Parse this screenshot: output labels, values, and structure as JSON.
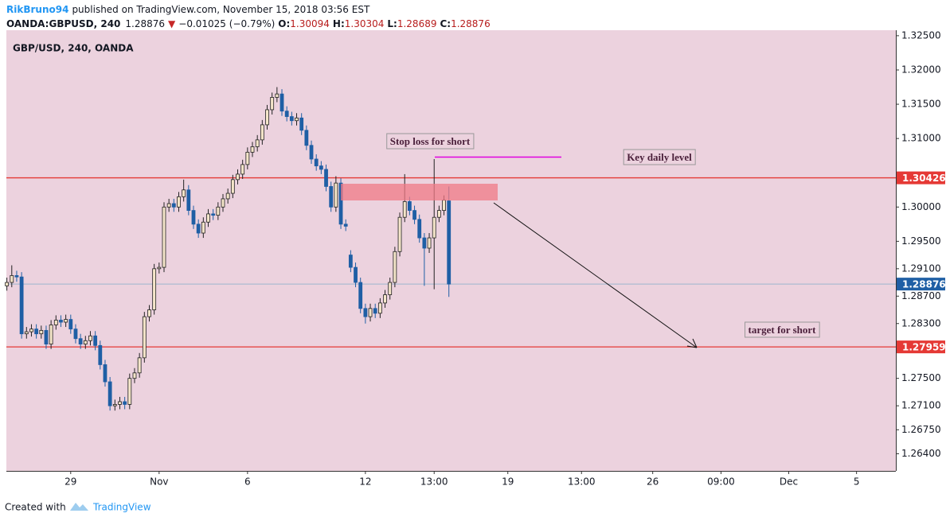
{
  "header": {
    "author": "RikBruno94",
    "published": "published on TradingView.com, November 15, 2018 03:56 EST",
    "symbol": "OANDA:GBPUSD, 240",
    "last": "1.28876",
    "change": "−0.01025 (−0.79%)",
    "ohlc": [
      {
        "label": "O:",
        "value": "1.30094"
      },
      {
        "label": "H:",
        "value": "1.30304"
      },
      {
        "label": "L:",
        "value": "1.28689"
      },
      {
        "label": "C:",
        "value": "1.28876"
      }
    ]
  },
  "footer": {
    "created": "Created with",
    "brand": "TradingView"
  },
  "chart_data": {
    "type": "candlestick",
    "title": "GBP/USD, 240, OANDA",
    "up_color": "#f4e5c9",
    "down_color": "#1f5fa5",
    "open": [
      1.2885,
      1.289,
      1.29,
      1.2898,
      1.2815,
      1.2818,
      1.2822,
      1.2815,
      1.282,
      1.28,
      1.2828,
      1.2835,
      1.2832,
      1.2836,
      1.2822,
      1.2808,
      1.28,
      1.2805,
      1.2812,
      1.2798,
      1.277,
      1.2745,
      1.271,
      1.2712,
      1.2716,
      1.2712,
      1.275,
      1.2758,
      1.278,
      1.284,
      1.285,
      1.291,
      1.2912,
      1.3,
      1.3005,
      1.3,
      1.3015,
      1.3025,
      1.2995,
      1.2975,
      1.2962,
      1.2978,
      1.299,
      1.2988,
      1.3,
      1.3012,
      1.302,
      1.304,
      1.3048,
      1.3062,
      1.308,
      1.3088,
      1.3098,
      1.312,
      1.3142,
      1.316,
      1.3165,
      1.314,
      1.3132,
      1.3126,
      1.313,
      1.3112,
      1.309,
      1.307,
      1.306,
      1.3055,
      1.303,
      1.3,
      1.3035,
      1.2975,
      1.293,
      1.2912,
      1.289,
      1.2852,
      1.284,
      1.2852,
      1.2845,
      1.286,
      1.2872,
      1.289,
      1.2935,
      1.2985,
      1.3008,
      1.2995,
      1.2982,
      1.2955,
      1.294,
      1.2955,
      1.2985,
      1.2995,
      1.3009
    ],
    "high": [
      1.2897,
      1.2915,
      1.2907,
      1.2905,
      1.2825,
      1.2829,
      1.2829,
      1.2827,
      1.2827,
      1.2835,
      1.2842,
      1.2842,
      1.2843,
      1.2843,
      1.2829,
      1.2815,
      1.2812,
      1.2819,
      1.2819,
      1.2805,
      1.2777,
      1.2752,
      1.2719,
      1.2723,
      1.2723,
      1.2757,
      1.2765,
      1.2787,
      1.2847,
      1.2857,
      1.2917,
      1.2919,
      1.3007,
      1.3012,
      1.3012,
      1.3022,
      1.304,
      1.3032,
      1.3002,
      1.2982,
      1.2985,
      1.2997,
      1.2997,
      1.3007,
      1.3019,
      1.3027,
      1.3047,
      1.3055,
      1.3069,
      1.3087,
      1.3095,
      1.3105,
      1.3127,
      1.3149,
      1.3167,
      1.3175,
      1.3172,
      1.3147,
      1.3139,
      1.3137,
      1.3137,
      1.3119,
      1.3097,
      1.3077,
      1.3067,
      1.3062,
      1.3037,
      1.3045,
      1.3042,
      1.2982,
      1.2937,
      1.2919,
      1.2897,
      1.2859,
      1.2859,
      1.2859,
      1.2867,
      1.2879,
      1.2897,
      1.2942,
      1.2992,
      1.3048,
      1.3015,
      1.3002,
      1.2989,
      1.2962,
      1.2962,
      1.307,
      1.3002,
      1.3017,
      1.303
    ],
    "low": [
      1.2878,
      1.2883,
      1.2891,
      1.2808,
      1.2808,
      1.2811,
      1.2808,
      1.2808,
      1.2793,
      1.2793,
      1.2821,
      1.2825,
      1.2825,
      1.2815,
      1.2801,
      1.2793,
      1.2793,
      1.2798,
      1.2791,
      1.2763,
      1.2738,
      1.2703,
      1.2703,
      1.2705,
      1.2705,
      1.2705,
      1.2743,
      1.2751,
      1.2773,
      1.2833,
      1.2843,
      1.2903,
      1.2905,
      1.2993,
      1.2993,
      1.2993,
      1.3008,
      1.2988,
      1.2968,
      1.2955,
      1.2955,
      1.2971,
      1.2981,
      1.2981,
      1.2993,
      1.3005,
      1.3013,
      1.3033,
      1.3041,
      1.3055,
      1.3073,
      1.3081,
      1.3091,
      1.3113,
      1.3135,
      1.3153,
      1.3133,
      1.3125,
      1.3119,
      1.3119,
      1.3105,
      1.3083,
      1.3063,
      1.3053,
      1.3048,
      1.3023,
      1.2993,
      1.2993,
      1.2968,
      1.2965,
      1.2905,
      1.2883,
      1.2845,
      1.283,
      1.2833,
      1.2838,
      1.2838,
      1.2853,
      1.2865,
      1.2883,
      1.2928,
      1.2978,
      1.2988,
      1.2975,
      1.2948,
      1.2885,
      1.2933,
      1.288,
      1.2978,
      1.2988,
      1.28689
    ],
    "close": [
      1.289,
      1.29,
      1.2898,
      1.2815,
      1.2818,
      1.2822,
      1.2815,
      1.282,
      1.28,
      1.2828,
      1.2835,
      1.2832,
      1.2836,
      1.2822,
      1.2808,
      1.28,
      1.2805,
      1.2812,
      1.2798,
      1.277,
      1.2745,
      1.271,
      1.2712,
      1.2716,
      1.2712,
      1.275,
      1.2758,
      1.278,
      1.284,
      1.285,
      1.291,
      1.2912,
      1.3,
      1.3005,
      1.3,
      1.3015,
      1.3025,
      1.2995,
      1.2975,
      1.2962,
      1.2978,
      1.299,
      1.2988,
      1.3,
      1.3012,
      1.302,
      1.304,
      1.3048,
      1.3062,
      1.308,
      1.3088,
      1.3098,
      1.312,
      1.3142,
      1.316,
      1.3165,
      1.314,
      1.3132,
      1.3126,
      1.313,
      1.3112,
      1.309,
      1.307,
      1.306,
      1.3055,
      1.303,
      1.3,
      1.3035,
      1.2975,
      1.2972,
      1.2912,
      1.289,
      1.2852,
      1.284,
      1.2852,
      1.2845,
      1.286,
      1.2872,
      1.289,
      1.2935,
      1.2985,
      1.3008,
      1.2995,
      1.2982,
      1.2955,
      1.294,
      1.2955,
      1.2985,
      1.2995,
      1.301,
      1.28876
    ],
    "xlim": [
      -0.1,
      181
    ],
    "xticks": [
      {
        "value": 13,
        "label": "29"
      },
      {
        "value": 31,
        "label": "Nov"
      },
      {
        "value": 49,
        "label": "6"
      },
      {
        "value": 73,
        "label": "12"
      },
      {
        "value": 87,
        "label": "13:00"
      },
      {
        "value": 102,
        "label": "19"
      },
      {
        "value": 117,
        "label": "13:00"
      },
      {
        "value": 131.5,
        "label": "26"
      },
      {
        "value": 145.4,
        "label": "09:00"
      },
      {
        "value": 159.2,
        "label": "Dec"
      },
      {
        "value": 173,
        "label": "5"
      }
    ],
    "ylim": [
      1.2615,
      1.3258
    ],
    "yticks": [
      {
        "value": 1.325,
        "label": "1.32500"
      },
      {
        "value": 1.32,
        "label": "1.32000"
      },
      {
        "value": 1.315,
        "label": "1.31500"
      },
      {
        "value": 1.31,
        "label": "1.31000"
      },
      {
        "value": 1.3,
        "label": "1.30000"
      },
      {
        "value": 1.295,
        "label": "1.29500"
      },
      {
        "value": 1.291,
        "label": "1.29100"
      },
      {
        "value": 1.287,
        "label": "1.28700"
      },
      {
        "value": 1.283,
        "label": "1.28300"
      },
      {
        "value": 1.275,
        "label": "1.27500"
      },
      {
        "value": 1.271,
        "label": "1.27100"
      },
      {
        "value": 1.2675,
        "label": "1.26750"
      },
      {
        "value": 1.264,
        "label": "1.26400"
      }
    ],
    "grid": false,
    "levels": [
      {
        "price": 1.30426,
        "color": "#e53935"
      },
      {
        "price": 1.28876,
        "color": "#1f5fa5"
      },
      {
        "price": 1.27959,
        "color": "#e53935"
      }
    ],
    "annotations": [
      "Stop loss for short",
      "Key daily level",
      "target for short"
    ]
  }
}
